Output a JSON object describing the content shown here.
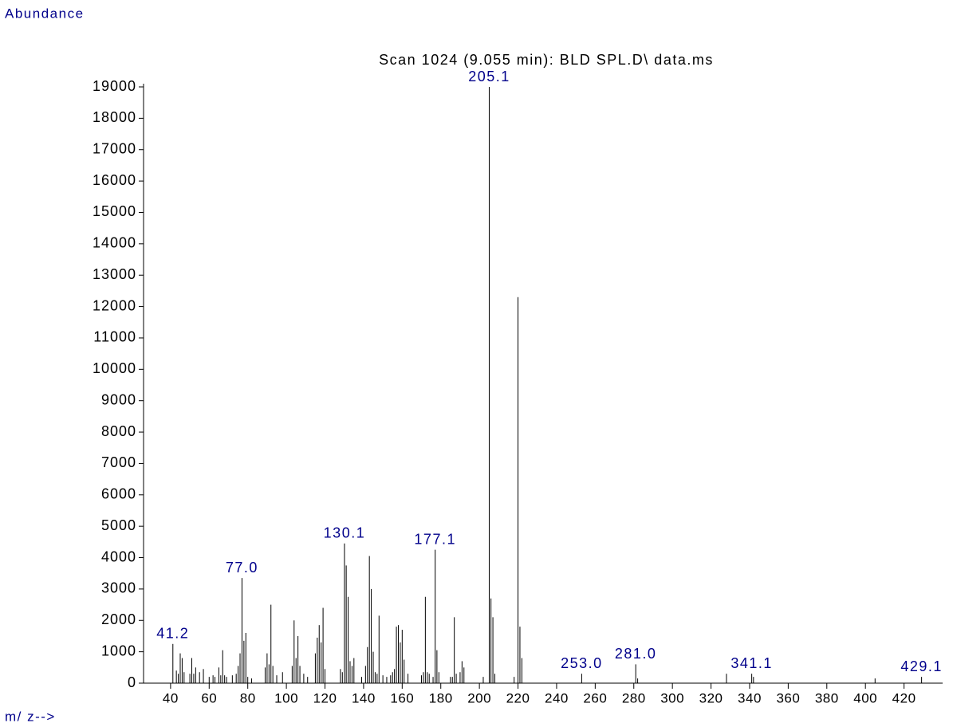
{
  "chart_data": {
    "type": "bar",
    "title": "Scan 1024 (9.055 min): BLD SPL.D\\ data.ms",
    "y_label": "Abundance",
    "x_label": "m/ z-->",
    "color": "#000000",
    "xlim": [
      26,
      440
    ],
    "ylim": [
      0,
      19000
    ],
    "xticks": [
      40,
      60,
      80,
      100,
      120,
      140,
      160,
      180,
      200,
      220,
      240,
      260,
      280,
      300,
      320,
      340,
      360,
      380,
      400,
      420
    ],
    "yticks": [
      0,
      1000,
      2000,
      3000,
      4000,
      5000,
      6000,
      7000,
      8000,
      9000,
      10000,
      11000,
      12000,
      13000,
      14000,
      15000,
      16000,
      17000,
      18000,
      19000
    ],
    "x": [
      41.2,
      43,
      44,
      45,
      46,
      47,
      50,
      51,
      52,
      53,
      55,
      57,
      60,
      62,
      63,
      65,
      66,
      67,
      68,
      69,
      72,
      74,
      75,
      76,
      77.0,
      78,
      79,
      80,
      82,
      89,
      90,
      91,
      92,
      93,
      95,
      98,
      103,
      104,
      105,
      106,
      107,
      109,
      111,
      115,
      116,
      117,
      118,
      119,
      120,
      128,
      129,
      130.1,
      131,
      132,
      133,
      134,
      135,
      139,
      141,
      142,
      143,
      144,
      145,
      146,
      147,
      148,
      150,
      152,
      154,
      155,
      156,
      157,
      158,
      159,
      160,
      161,
      163,
      170,
      171,
      172,
      173,
      174,
      176,
      177.1,
      178,
      179,
      185,
      186,
      187,
      188,
      190,
      191,
      192,
      202,
      205.1,
      206,
      207,
      208,
      218,
      220,
      221,
      222,
      253.0,
      281.0,
      282,
      328,
      341.1,
      342,
      405,
      429.1
    ],
    "values": [
      1250,
      400,
      300,
      950,
      800,
      350,
      300,
      800,
      300,
      500,
      350,
      450,
      200,
      250,
      200,
      500,
      250,
      1050,
      250,
      200,
      250,
      300,
      550,
      950,
      3350,
      1350,
      1600,
      200,
      150,
      500,
      950,
      600,
      2500,
      550,
      250,
      350,
      550,
      2000,
      800,
      1500,
      550,
      300,
      200,
      950,
      1450,
      1850,
      1300,
      2400,
      450,
      450,
      350,
      4450,
      3750,
      2750,
      700,
      550,
      800,
      200,
      550,
      1150,
      4050,
      3000,
      1000,
      350,
      300,
      2150,
      250,
      200,
      250,
      350,
      450,
      1800,
      1850,
      1300,
      1700,
      750,
      300,
      250,
      350,
      2750,
      350,
      300,
      200,
      4250,
      1050,
      350,
      200,
      200,
      2100,
      300,
      350,
      700,
      500,
      200,
      19000,
      2700,
      2100,
      300,
      200,
      12300,
      1800,
      800,
      300,
      600,
      150,
      300,
      300,
      200,
      150,
      200
    ],
    "annotations": [
      {
        "x": 41.2,
        "label": "41.2"
      },
      {
        "x": 77.0,
        "label": "77.0"
      },
      {
        "x": 130.1,
        "label": "130.1"
      },
      {
        "x": 177.1,
        "label": "177.1"
      },
      {
        "x": 205.1,
        "label": "205.1"
      },
      {
        "x": 253.0,
        "label": "253.0"
      },
      {
        "x": 281.0,
        "label": "281.0"
      },
      {
        "x": 341.1,
        "label": "341.1"
      },
      {
        "x": 429.1,
        "label": "429.1"
      }
    ]
  }
}
